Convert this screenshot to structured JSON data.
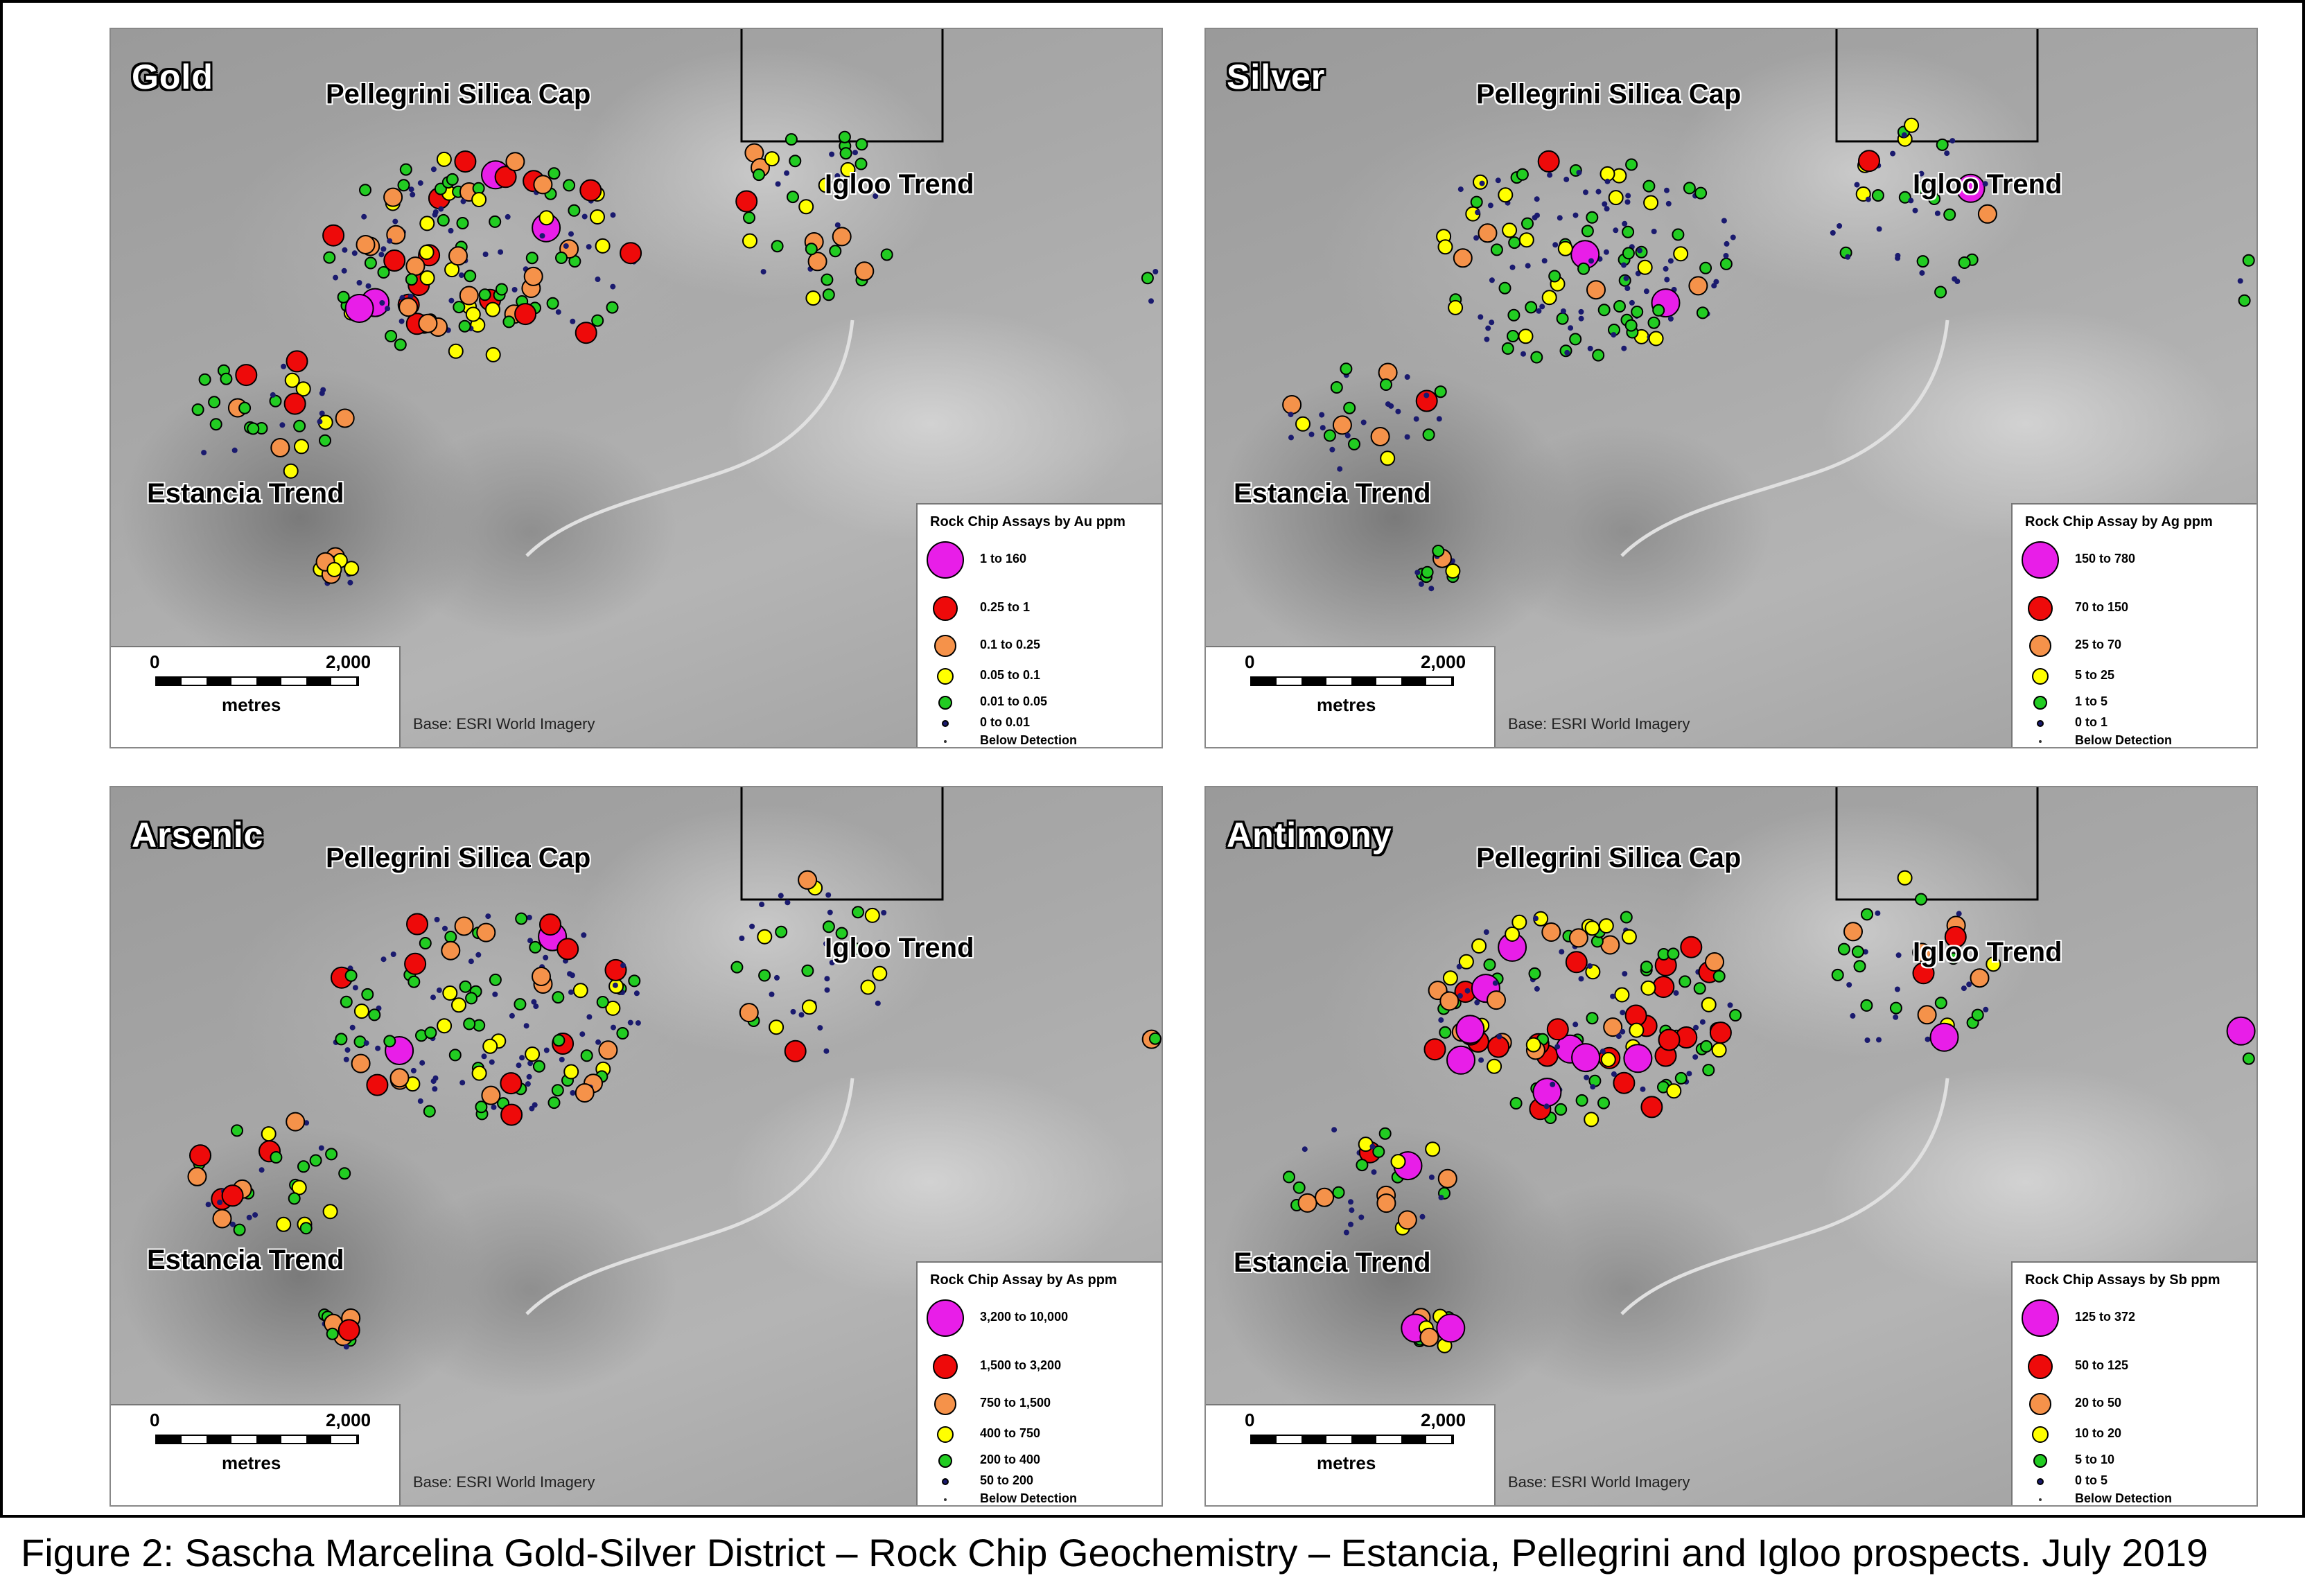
{
  "figure": {
    "caption": "Figure 2: Sascha Marcelina Gold-Silver District – Rock Chip Geochemistry – Estancia, Pellegrini and Igloo prospects. July 2019"
  },
  "common": {
    "place_labels": {
      "pellegrini": "Pellegrini Silica Cap",
      "igloo": "Igloo Trend",
      "estancia": "Estancia Trend"
    },
    "scale": {
      "start": "0",
      "end": "2,000",
      "unit": "metres"
    },
    "base": "Base: ESRI World Imagery"
  },
  "colors": {
    "magenta": "#e81ee8",
    "red": "#ee0a0a",
    "orange": "#f5924a",
    "yellow": "#ffff00",
    "green": "#22cc22",
    "navy": "#1a1a6e",
    "below": "#333333"
  },
  "panels": [
    {
      "element": "Gold",
      "legend_title": "Rock Chip Assays by Au ppm",
      "legend": [
        {
          "class": "magenta",
          "label": "1      to 160"
        },
        {
          "class": "red",
          "label": "0.25 to    1"
        },
        {
          "class": "orange",
          "label": "0.1    to    0.25"
        },
        {
          "class": "yellow",
          "label": "0.05 to    0.1"
        },
        {
          "class": "green",
          "label": "0.01 to    0.05"
        },
        {
          "class": "navy",
          "label": "0      to    0.01"
        },
        {
          "class": "below",
          "label": "Below Detection"
        }
      ]
    },
    {
      "element": "Silver",
      "legend_title": "Rock Chip Assay by Ag ppm",
      "legend": [
        {
          "class": "magenta",
          "label": "150 to 780"
        },
        {
          "class": "red",
          "label": "70 to 150"
        },
        {
          "class": "orange",
          "label": "25 to    70"
        },
        {
          "class": "yellow",
          "label": "5 to    25"
        },
        {
          "class": "green",
          "label": "1 to      5"
        },
        {
          "class": "navy",
          "label": "0 to      1"
        },
        {
          "class": "below",
          "label": "Below Detection"
        }
      ]
    },
    {
      "element": "Arsenic",
      "legend_title": "Rock Chip Assay by As ppm",
      "legend": [
        {
          "class": "magenta",
          "label": "3,200 to 10,000"
        },
        {
          "class": "red",
          "label": "1,500 to    3,200"
        },
        {
          "class": "orange",
          "label": "750 to    1,500"
        },
        {
          "class": "yellow",
          "label": "400 to       750"
        },
        {
          "class": "green",
          "label": "200 to       400"
        },
        {
          "class": "navy",
          "label": "50 to       200"
        },
        {
          "class": "below",
          "label": "Below Detection"
        }
      ]
    },
    {
      "element": "Antimony",
      "legend_title": "Rock Chip Assays by Sb ppm",
      "legend": [
        {
          "class": "magenta",
          "label": "125 to 372"
        },
        {
          "class": "red",
          "label": "50 to 125"
        },
        {
          "class": "orange",
          "label": "20 to    50"
        },
        {
          "class": "yellow",
          "label": "10 to    20"
        },
        {
          "class": "green",
          "label": "5 to    10"
        },
        {
          "class": "navy",
          "label": "0 to      5"
        },
        {
          "class": "below",
          "label": "Below Detection"
        }
      ]
    }
  ]
}
